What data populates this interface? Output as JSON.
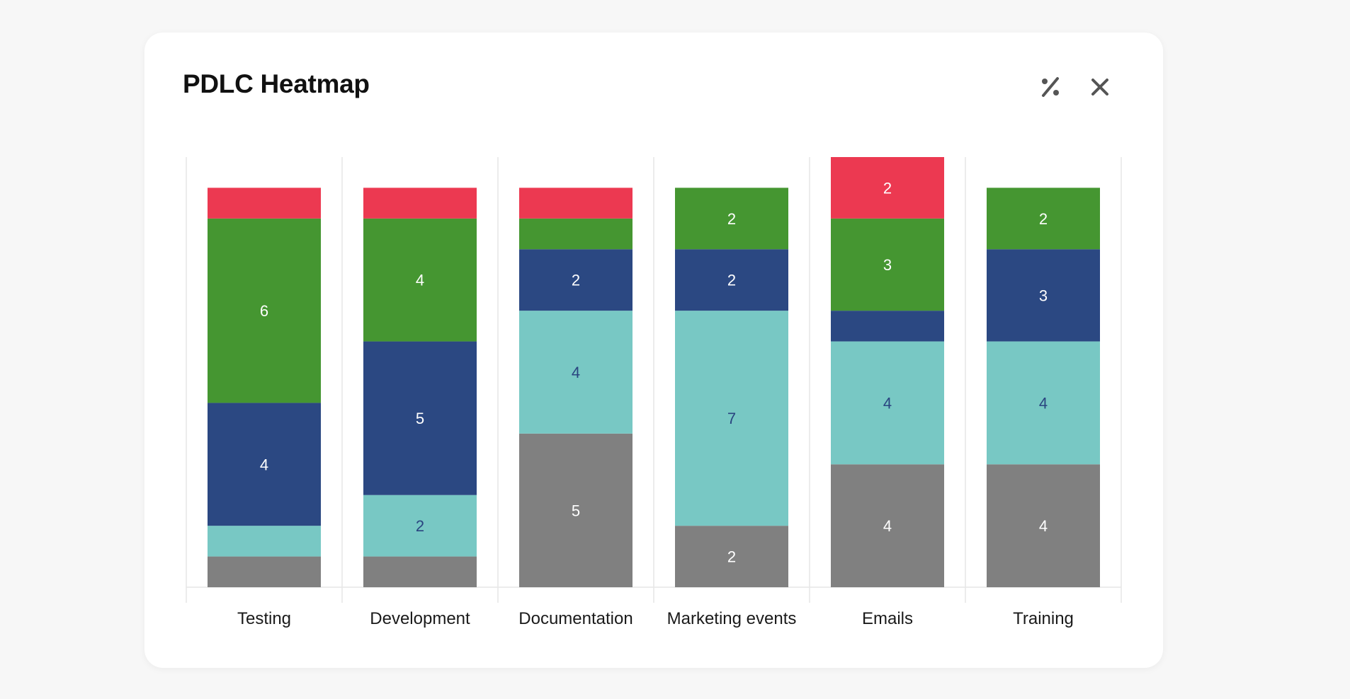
{
  "header": {
    "title": "PDLC Heatmap",
    "percent_icon": "percent-icon",
    "close_icon": "close-icon"
  },
  "chart_data": {
    "type": "bar",
    "stacked": true,
    "title": "PDLC Heatmap",
    "xlabel": "",
    "ylabel": "",
    "ylim": [
      0,
      14
    ],
    "grid": true,
    "legend": "none",
    "categories": [
      "Testing",
      "Development",
      "Documentation",
      "Marketing events",
      "Emails",
      "Training"
    ],
    "series": [
      {
        "name": "Gray",
        "color": "#808080",
        "label_color": "#ffffff",
        "values": [
          1,
          1,
          5,
          2,
          4,
          4
        ],
        "labels": [
          "",
          "",
          "5",
          "2",
          "4",
          "4"
        ]
      },
      {
        "name": "Teal",
        "color": "#78c8c4",
        "label_color": "#2a4580",
        "values": [
          1,
          2,
          4,
          7,
          4,
          4
        ],
        "labels": [
          "",
          "2",
          "4",
          "7",
          "4",
          "4"
        ]
      },
      {
        "name": "Navy",
        "color": "#2b4882",
        "label_color": "#ffffff",
        "values": [
          4,
          5,
          2,
          2,
          1,
          3
        ],
        "labels": [
          "4",
          "5",
          "2",
          "2",
          "",
          "3"
        ]
      },
      {
        "name": "Green",
        "color": "#459631",
        "label_color": "#ffffff",
        "values": [
          6,
          4,
          1,
          2,
          3,
          2
        ],
        "labels": [
          "6",
          "4",
          "",
          "2",
          "3",
          "2"
        ]
      },
      {
        "name": "Red",
        "color": "#ec3951",
        "label_color": "#ffffff",
        "values": [
          1,
          1,
          1,
          0,
          2,
          0
        ],
        "labels": [
          "",
          "",
          "",
          "",
          "2",
          ""
        ]
      }
    ]
  }
}
